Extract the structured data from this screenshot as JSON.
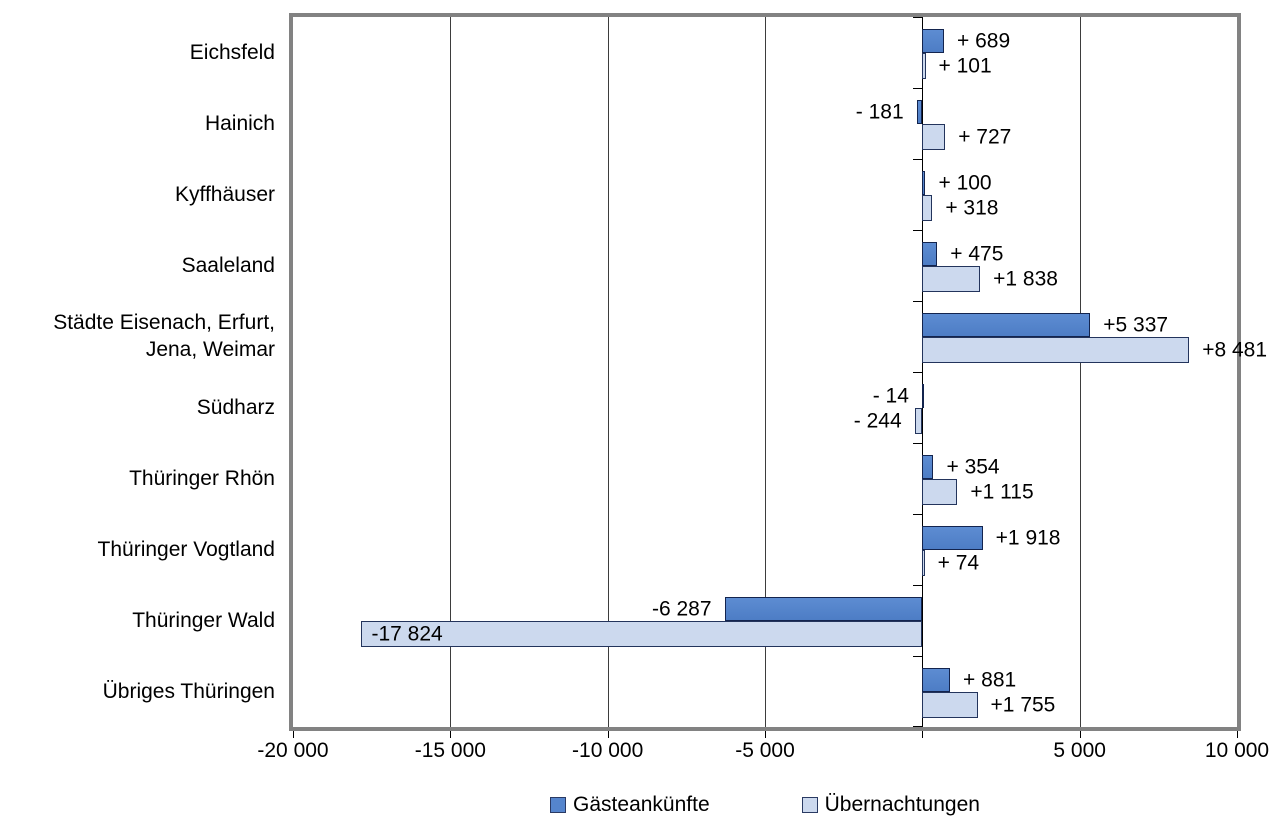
{
  "chart_data": {
    "type": "bar",
    "orientation": "horizontal",
    "categories": [
      "Eichsfeld",
      "Hainich",
      "Kyffhäuser",
      "Saaleland",
      "Städte Eisenach, Erfurt,\nJena, Weimar",
      "Südharz",
      "Thüringer Rhön",
      "Thüringer Vogtland",
      "Thüringer Wald",
      "Übriges Thüringen"
    ],
    "series": [
      {
        "name": "Gästeankünfte",
        "color": "#5585cd",
        "values": [
          689,
          -181,
          100,
          475,
          5337,
          -14,
          354,
          1918,
          -6287,
          881
        ],
        "labels": [
          "+ 689",
          "- 181",
          "+ 100",
          "+ 475",
          "+5 337",
          "- 14",
          "+ 354",
          "+1 918",
          "-6 287",
          "+ 881"
        ]
      },
      {
        "name": "Übernachtungen",
        "color": "#ccd9ee",
        "values": [
          101,
          727,
          318,
          1838,
          8481,
          -244,
          1115,
          74,
          -17824,
          1755
        ],
        "labels": [
          "+ 101",
          "+ 727",
          "+ 318",
          "+1 838",
          "+8 481",
          "- 244",
          "+1 115",
          "+ 74",
          "-17 824",
          "+1 755"
        ]
      }
    ],
    "xlim": [
      -20000,
      10000
    ],
    "x_ticks": [
      {
        "value": -20000,
        "label": "-20 000"
      },
      {
        "value": -15000,
        "label": "-15 000"
      },
      {
        "value": -10000,
        "label": "-10 000"
      },
      {
        "value": -5000,
        "label": "-5 000"
      },
      {
        "value": 0,
        "label": ""
      },
      {
        "value": 5000,
        "label": "5 000"
      },
      {
        "value": 10000,
        "label": "10 000"
      }
    ],
    "grid": true,
    "legend_position": "bottom",
    "colors": {
      "bar_border": "#13244e",
      "plot_border": "#828282",
      "gridline": "#3d3d3d",
      "zero_axis": "#000000",
      "text": "#000000"
    }
  }
}
